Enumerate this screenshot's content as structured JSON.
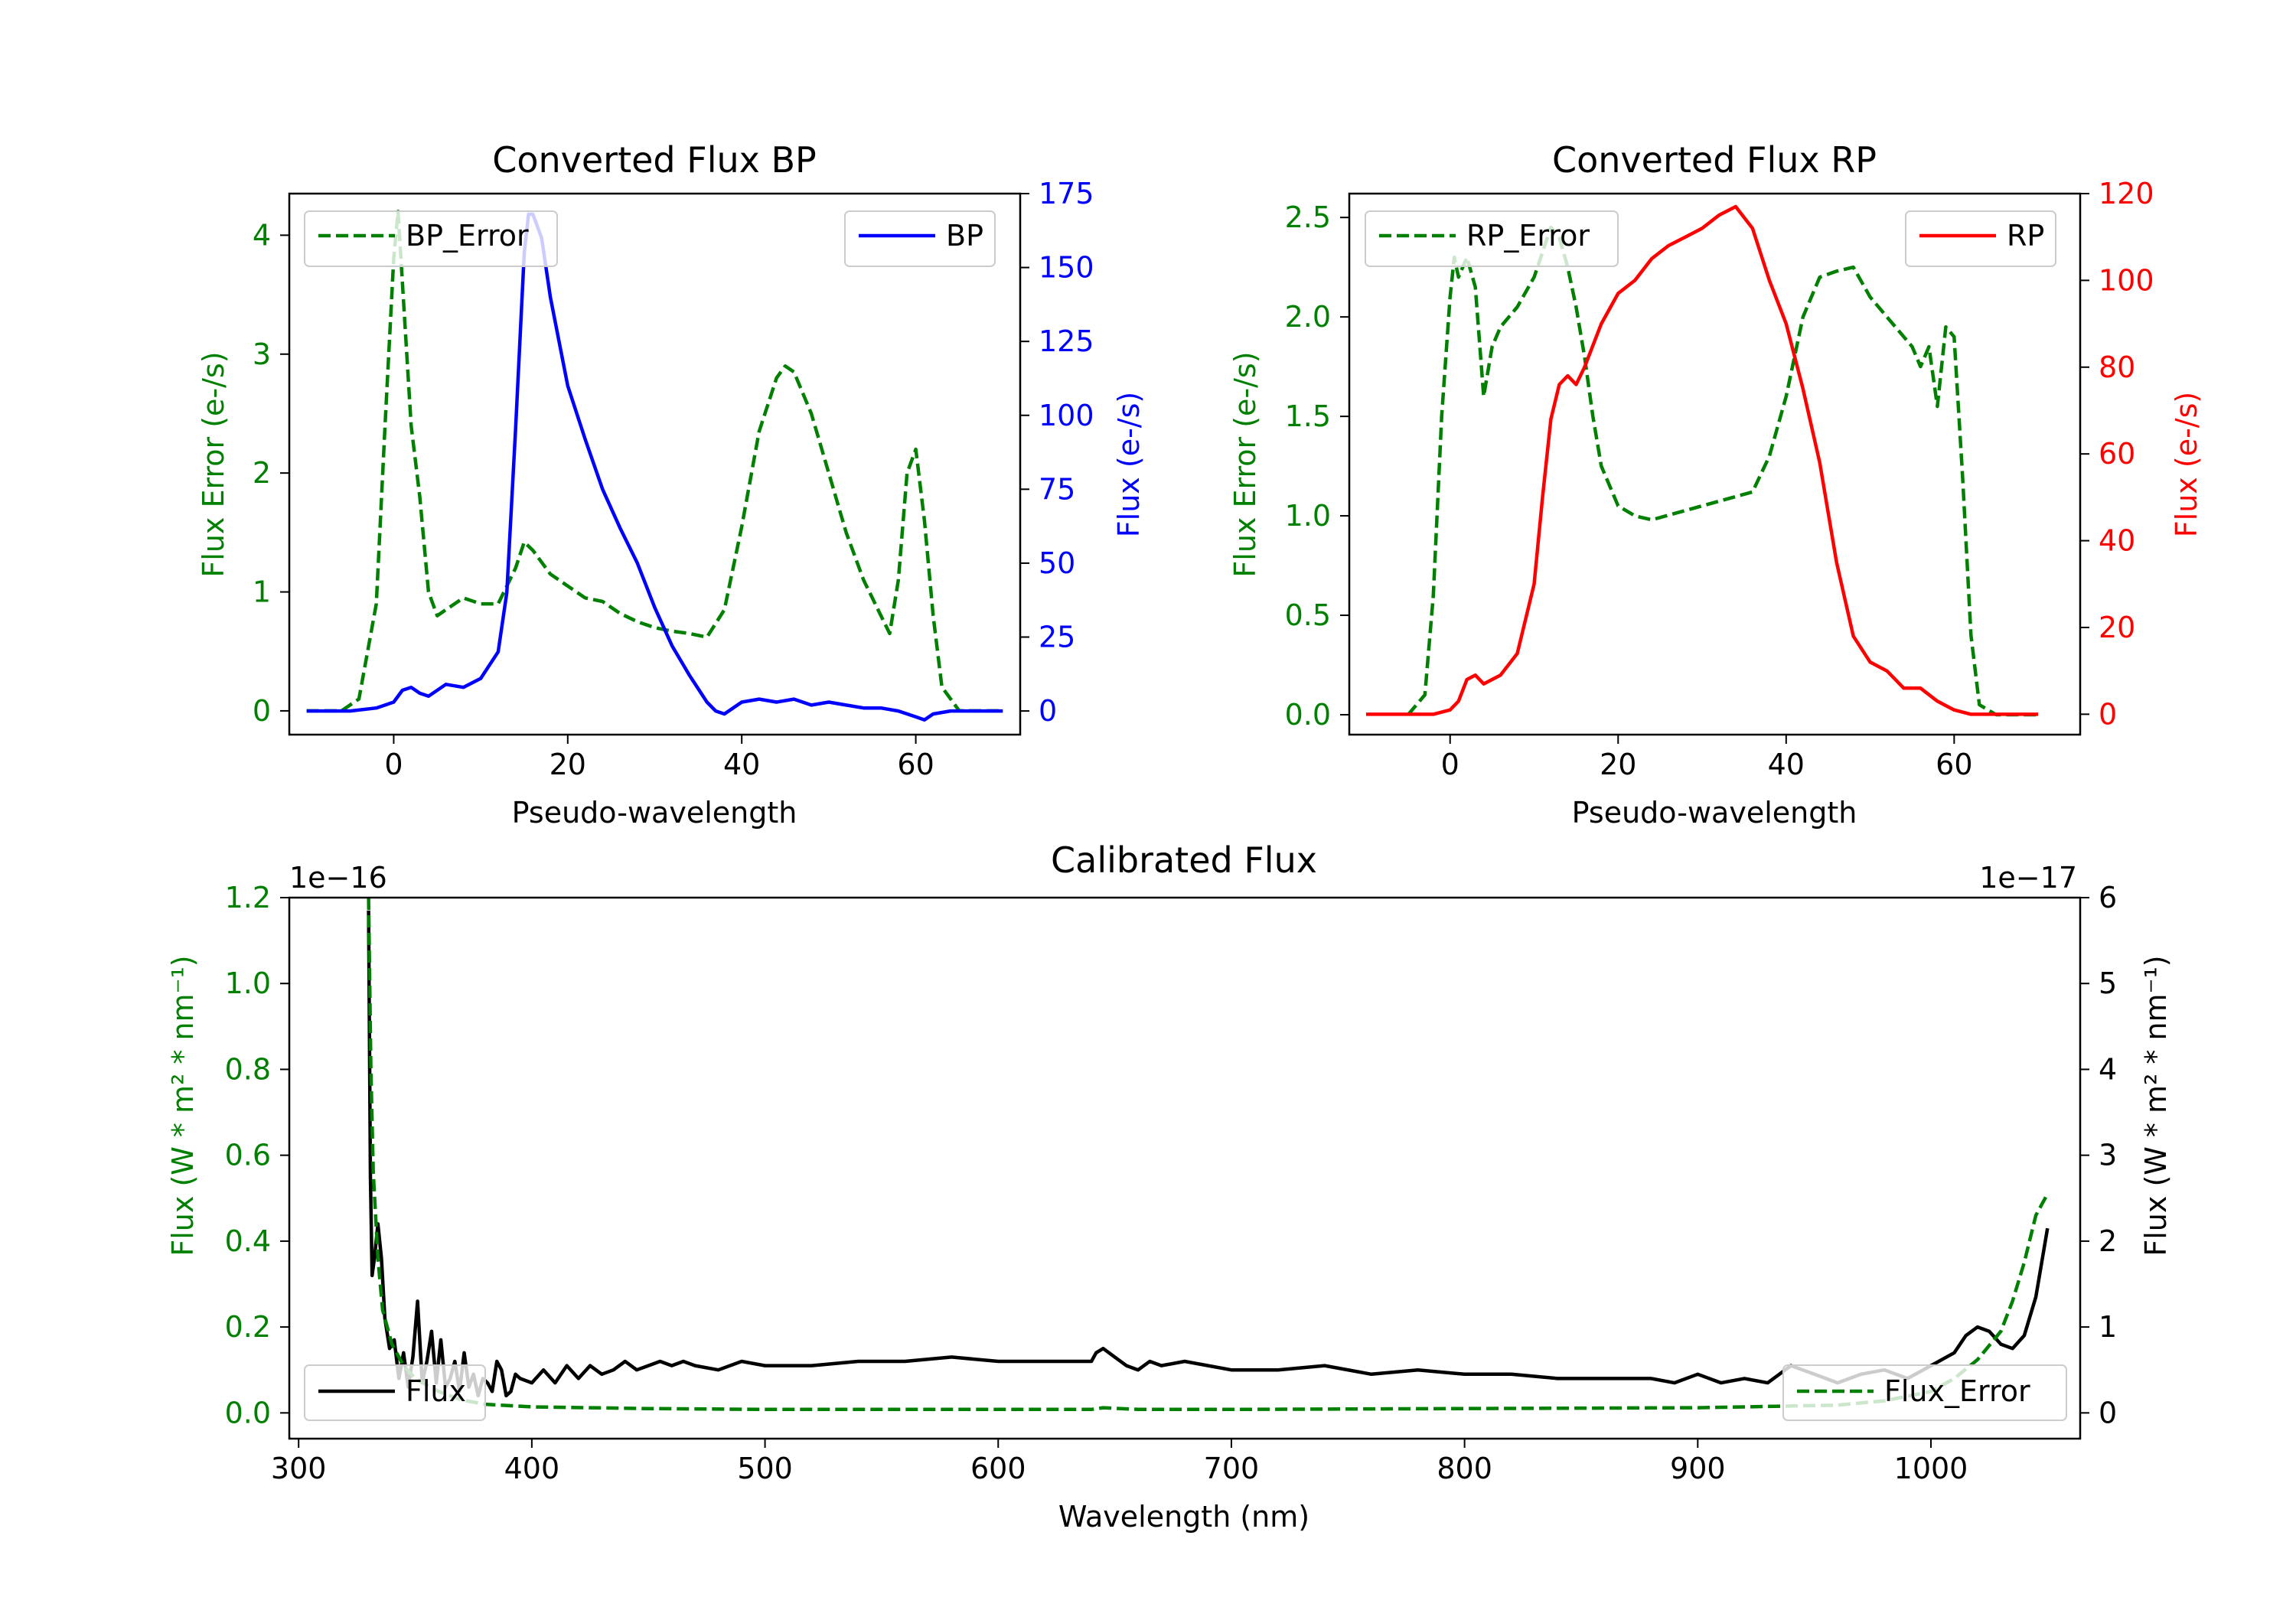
{
  "colors": {
    "green": "#008000",
    "blue": "#0000ff",
    "red": "#ff0000",
    "black": "#000000"
  },
  "chart_data": [
    {
      "id": "bp",
      "type": "line",
      "title": "Converted Flux BP",
      "xlabel": "Pseudo-wavelength",
      "ylabel_left": "Flux Error (e-/s)",
      "ylabel_right": "Flux (e-/s)",
      "xlim": [
        -12,
        72
      ],
      "ylim_left": [
        -0.2,
        4.35
      ],
      "ylim_right": [
        -8,
        175
      ],
      "xticks": [
        0,
        20,
        40,
        60
      ],
      "yticks_left": [
        0,
        1,
        2,
        3,
        4
      ],
      "yticks_right": [
        0,
        25,
        50,
        75,
        100,
        125,
        150,
        175
      ],
      "left_axis_color": "#008000",
      "right_axis_color": "#0000ff",
      "legend_left": {
        "label": "BP_Error",
        "position": "upper left"
      },
      "legend_right": {
        "label": "BP",
        "position": "upper right"
      },
      "series": [
        {
          "name": "BP_Error",
          "axis": "left",
          "color": "#008000",
          "dash": true,
          "x": [
            -10,
            -6,
            -4,
            -2,
            -1,
            0,
            0.5,
            1,
            2,
            3,
            4,
            5,
            6,
            8,
            10,
            12,
            14,
            15,
            16,
            18,
            20,
            22,
            24,
            26,
            28,
            30,
            32,
            34,
            36,
            38,
            40,
            42,
            44,
            45,
            46,
            48,
            50,
            52,
            54,
            56,
            57,
            58,
            59,
            60,
            61,
            62,
            63,
            65,
            70
          ],
          "y": [
            0,
            0,
            0.1,
            0.9,
            2.4,
            3.8,
            4.2,
            3.6,
            2.4,
            1.8,
            1.0,
            0.8,
            0.85,
            0.95,
            0.9,
            0.9,
            1.2,
            1.42,
            1.35,
            1.15,
            1.05,
            0.95,
            0.92,
            0.82,
            0.75,
            0.7,
            0.67,
            0.65,
            0.62,
            0.85,
            1.55,
            2.35,
            2.8,
            2.9,
            2.85,
            2.5,
            2.0,
            1.5,
            1.1,
            0.8,
            0.65,
            1.1,
            2.0,
            2.2,
            1.6,
            0.8,
            0.2,
            0,
            0
          ]
        },
        {
          "name": "BP",
          "axis": "right",
          "color": "#0000ff",
          "dash": false,
          "x": [
            -10,
            -5,
            -2,
            0,
            1,
            2,
            3,
            4,
            6,
            8,
            10,
            12,
            13,
            14,
            15,
            15.5,
            16,
            17,
            18,
            20,
            22,
            24,
            26,
            28,
            30,
            32,
            34,
            36,
            37,
            38,
            40,
            42,
            44,
            46,
            48,
            50,
            52,
            54,
            56,
            58,
            60,
            61,
            62,
            64,
            66,
            70
          ],
          "y": [
            0,
            0,
            1,
            3,
            7,
            8,
            6,
            5,
            9,
            8,
            11,
            20,
            40,
            95,
            155,
            168,
            168,
            160,
            140,
            110,
            92,
            75,
            62,
            50,
            35,
            22,
            12,
            3,
            0,
            -1,
            3,
            4,
            3,
            4,
            2,
            3,
            2,
            1,
            1,
            0,
            -2,
            -3,
            -1,
            0,
            0,
            0
          ]
        }
      ]
    },
    {
      "id": "rp",
      "type": "line",
      "title": "Converted Flux RP",
      "xlabel": "Pseudo-wavelength",
      "ylabel_left": "Flux Error (e-/s)",
      "ylabel_right": "Flux (e-/s)",
      "xlim": [
        -12,
        75
      ],
      "ylim_left": [
        -0.1,
        2.62
      ],
      "ylim_right": [
        -4.7,
        120
      ],
      "xticks": [
        0,
        20,
        40,
        60
      ],
      "yticks_left": [
        0.0,
        0.5,
        1.0,
        1.5,
        2.0,
        2.5
      ],
      "yticks_left_labels": [
        "0.0",
        "0.5",
        "1.0",
        "1.5",
        "2.0",
        "2.5"
      ],
      "yticks_right": [
        0,
        20,
        40,
        60,
        80,
        100,
        120
      ],
      "left_axis_color": "#008000",
      "right_axis_color": "#ff0000",
      "legend_left": {
        "label": "RP_Error",
        "position": "upper left"
      },
      "legend_right": {
        "label": "RP",
        "position": "upper right"
      },
      "series": [
        {
          "name": "RP_Error",
          "axis": "left",
          "color": "#008000",
          "dash": true,
          "x": [
            -5,
            -3,
            -2,
            -1,
            0,
            0.5,
            1,
            2,
            3,
            4,
            5,
            6,
            8,
            10,
            12,
            13,
            14,
            15,
            16,
            17,
            18,
            20,
            22,
            24,
            30,
            36,
            38,
            40,
            42,
            44,
            46,
            48,
            50,
            52,
            54,
            55,
            56,
            57,
            58,
            59,
            60,
            61,
            62,
            63,
            65,
            70
          ],
          "y": [
            0,
            0.1,
            0.6,
            1.5,
            2.1,
            2.3,
            2.2,
            2.3,
            2.15,
            1.6,
            1.85,
            1.95,
            2.05,
            2.2,
            2.45,
            2.4,
            2.25,
            2.05,
            1.8,
            1.5,
            1.25,
            1.05,
            1.0,
            0.98,
            1.05,
            1.12,
            1.3,
            1.6,
            2.0,
            2.2,
            2.23,
            2.25,
            2.1,
            2.0,
            1.9,
            1.85,
            1.75,
            1.85,
            1.55,
            1.95,
            1.9,
            1.2,
            0.4,
            0.05,
            0,
            0
          ]
        },
        {
          "name": "RP",
          "axis": "right",
          "color": "#ff0000",
          "dash": false,
          "x": [
            -10,
            -2,
            0,
            1,
            2,
            3,
            4,
            6,
            8,
            10,
            11,
            12,
            13,
            14,
            15,
            16,
            18,
            20,
            22,
            24,
            26,
            28,
            30,
            32,
            34,
            36,
            38,
            40,
            42,
            44,
            46,
            48,
            50,
            52,
            54,
            56,
            58,
            60,
            62,
            70
          ],
          "y": [
            0,
            0,
            1,
            3,
            8,
            9,
            7,
            9,
            14,
            30,
            50,
            68,
            76,
            78,
            76,
            80,
            90,
            97,
            100,
            105,
            108,
            110,
            112,
            115,
            117,
            112,
            100,
            90,
            75,
            58,
            35,
            18,
            12,
            10,
            6,
            6,
            3,
            1,
            0,
            0
          ]
        }
      ]
    },
    {
      "id": "calibrated",
      "type": "line",
      "title": "Calibrated Flux",
      "xlabel": "Wavelength (nm)",
      "ylabel_left": "Flux (W * m² * nm⁻¹)",
      "ylabel_right": "Flux (W * m² * nm⁻¹)",
      "left_offset_text": "1e−16",
      "right_offset_text": "1e−17",
      "xlim": [
        296,
        1064
      ],
      "ylim_left": [
        -0.06,
        1.2
      ],
      "ylim_right": [
        -0.3,
        6.0
      ],
      "xticks": [
        300,
        400,
        500,
        600,
        700,
        800,
        900,
        1000
      ],
      "yticks_left": [
        0.0,
        0.2,
        0.4,
        0.6,
        0.8,
        1.0,
        1.2
      ],
      "yticks_left_labels": [
        "0.0",
        "0.2",
        "0.4",
        "0.6",
        "0.8",
        "1.0",
        "1.2"
      ],
      "yticks_right": [
        0,
        1,
        2,
        3,
        4,
        5,
        6
      ],
      "left_axis_color": "#008000",
      "right_axis_color": "#000000",
      "legend_left": {
        "label": "Flux",
        "position": "lower left"
      },
      "legend_right": {
        "label": "Flux_Error",
        "position": "lower right"
      },
      "series": [
        {
          "name": "Flux",
          "axis": "left",
          "color": "#000000",
          "dash": false,
          "x": [
            330,
            330.8,
            331.5,
            332.5,
            334,
            335.5,
            337,
            339,
            341,
            343,
            345,
            347,
            349,
            351,
            353,
            355,
            357,
            359,
            361,
            363,
            365,
            367,
            369,
            371,
            373,
            375,
            377,
            379,
            381,
            383,
            385,
            387,
            389,
            391,
            393,
            395,
            400,
            405,
            410,
            415,
            420,
            425,
            430,
            435,
            440,
            445,
            450,
            455,
            460,
            465,
            470,
            480,
            490,
            500,
            510,
            520,
            540,
            560,
            580,
            600,
            620,
            640,
            642,
            645,
            650,
            655,
            660,
            665,
            670,
            680,
            690,
            700,
            720,
            740,
            760,
            780,
            800,
            820,
            840,
            860,
            880,
            890,
            900,
            910,
            920,
            930,
            940,
            945,
            950,
            960,
            970,
            980,
            990,
            1000,
            1010,
            1015,
            1020,
            1025,
            1030,
            1035,
            1040,
            1045,
            1050
          ],
          "y": [
            1.17,
            0.55,
            0.32,
            0.36,
            0.44,
            0.36,
            0.22,
            0.15,
            0.17,
            0.08,
            0.14,
            0.06,
            0.13,
            0.26,
            0.07,
            0.12,
            0.19,
            0.07,
            0.17,
            0.06,
            0.08,
            0.12,
            0.05,
            0.14,
            0.06,
            0.09,
            0.04,
            0.08,
            0.07,
            0.05,
            0.12,
            0.1,
            0.04,
            0.05,
            0.09,
            0.08,
            0.07,
            0.1,
            0.07,
            0.11,
            0.08,
            0.11,
            0.09,
            0.1,
            0.12,
            0.1,
            0.11,
            0.12,
            0.11,
            0.12,
            0.11,
            0.1,
            0.12,
            0.11,
            0.11,
            0.11,
            0.12,
            0.12,
            0.13,
            0.12,
            0.12,
            0.12,
            0.14,
            0.15,
            0.13,
            0.11,
            0.1,
            0.12,
            0.11,
            0.12,
            0.11,
            0.1,
            0.1,
            0.11,
            0.09,
            0.1,
            0.09,
            0.09,
            0.08,
            0.08,
            0.08,
            0.07,
            0.09,
            0.07,
            0.08,
            0.07,
            0.11,
            0.1,
            0.09,
            0.07,
            0.09,
            0.1,
            0.08,
            0.11,
            0.14,
            0.18,
            0.2,
            0.19,
            0.16,
            0.15,
            0.18,
            0.27,
            0.43
          ]
        },
        {
          "name": "Flux_Error",
          "axis": "right",
          "color": "#008000",
          "dash": true,
          "x": [
            330,
            331,
            332,
            334,
            336,
            340,
            345,
            350,
            360,
            370,
            380,
            400,
            450,
            500,
            550,
            600,
            640,
            645,
            660,
            700,
            800,
            900,
            960,
            980,
            1000,
            1010,
            1020,
            1030,
            1035,
            1040,
            1045,
            1050
          ],
          "y": [
            6.0,
            4.0,
            2.8,
            1.8,
            1.2,
            0.8,
            0.55,
            0.4,
            0.25,
            0.15,
            0.1,
            0.07,
            0.05,
            0.04,
            0.04,
            0.04,
            0.04,
            0.06,
            0.04,
            0.04,
            0.05,
            0.06,
            0.09,
            0.14,
            0.25,
            0.4,
            0.62,
            0.95,
            1.3,
            1.75,
            2.3,
            2.55
          ]
        }
      ]
    }
  ]
}
